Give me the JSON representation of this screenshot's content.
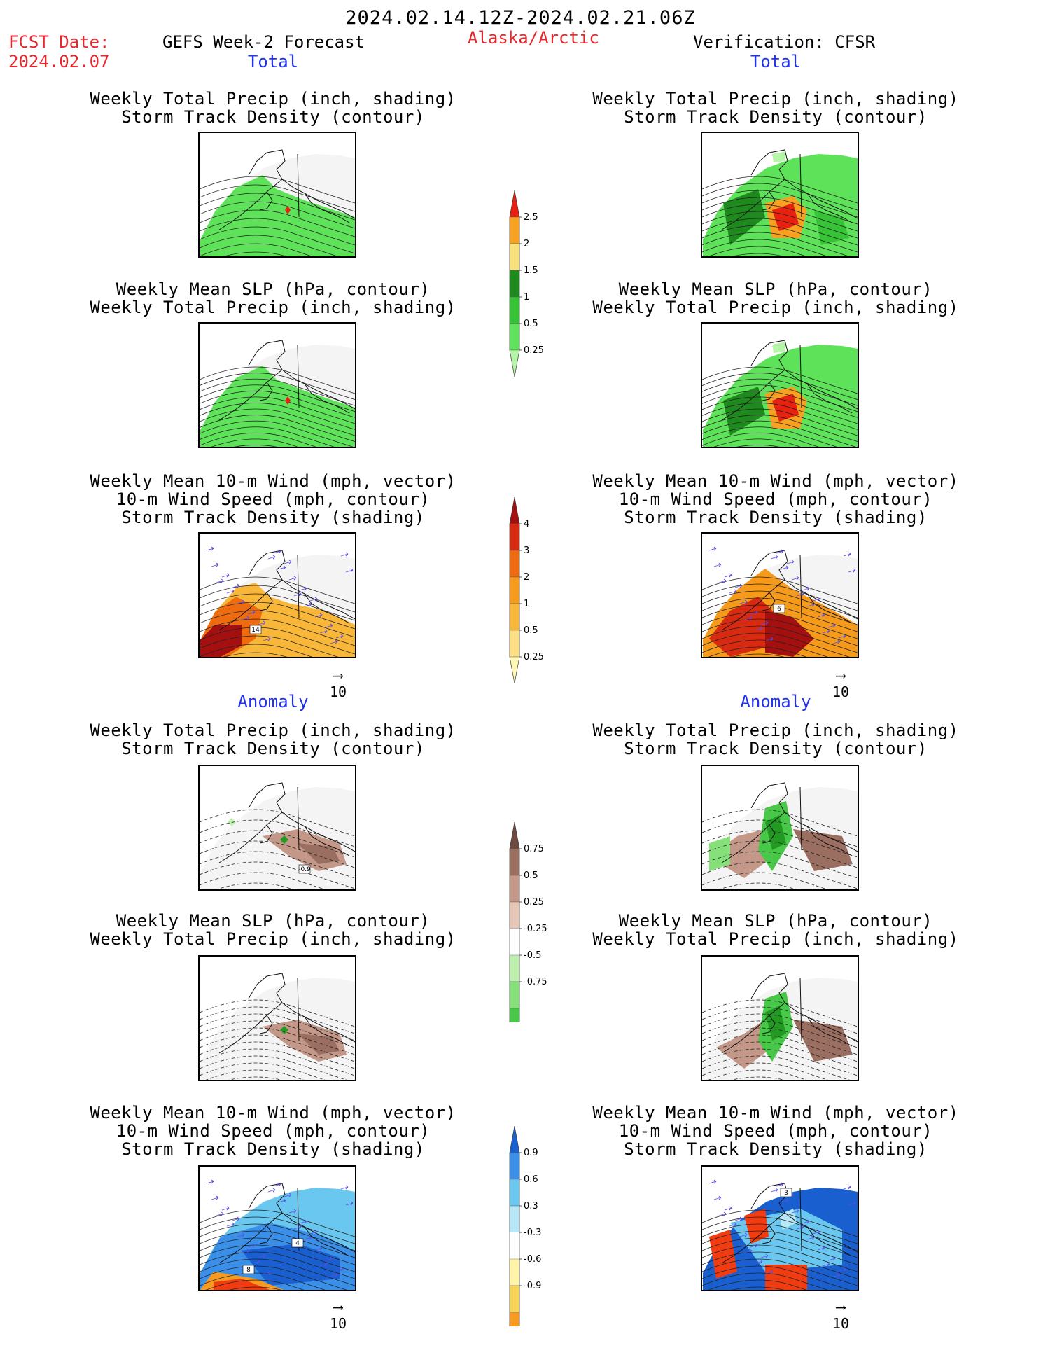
{
  "header": {
    "title": "2024.02.14.12Z-2024.02.21.06Z",
    "fcst_label": "FCST Date:",
    "fcst_date": "2024.02.07",
    "forecast_label": "GEFS Week-2 Forecast",
    "region": "Alaska/Arctic",
    "verification": "Verification: CFSR"
  },
  "sections": {
    "total_left": "Total",
    "total_right": "Total",
    "anomaly_left": "Anomaly",
    "anomaly_right": "Anomaly"
  },
  "panels": [
    {
      "id": "p1",
      "lines": [
        "Weekly Total Precip (inch, shading)",
        "Storm Track Density (contour)"
      ]
    },
    {
      "id": "p2",
      "lines": [
        "Weekly Total Precip (inch, shading)",
        "Storm Track Density (contour)"
      ]
    },
    {
      "id": "p3",
      "lines": [
        "Weekly Mean SLP (hPa, contour)",
        "Weekly Total Precip (inch, shading)"
      ]
    },
    {
      "id": "p4",
      "lines": [
        "Weekly Mean SLP (hPa, contour)",
        "Weekly Total Precip (inch, shading)"
      ]
    },
    {
      "id": "p5",
      "lines": [
        "Weekly Mean 10-m Wind (mph, vector)",
        "10-m Wind Speed (mph, contour)",
        "Storm Track Density (shading)"
      ]
    },
    {
      "id": "p6",
      "lines": [
        "Weekly Mean 10-m Wind (mph, vector)",
        "10-m Wind Speed (mph, contour)",
        "Storm Track Density (shading)"
      ]
    },
    {
      "id": "p7",
      "lines": [
        "Weekly Total Precip (inch, shading)",
        "Storm Track Density (contour)"
      ]
    },
    {
      "id": "p8",
      "lines": [
        "Weekly Total Precip (inch, shading)",
        "Storm Track Density (contour)"
      ]
    },
    {
      "id": "p9",
      "lines": [
        "Weekly Mean SLP (hPa, contour)",
        "Weekly Total Precip (inch, shading)"
      ]
    },
    {
      "id": "p10",
      "lines": [
        "Weekly Mean SLP (hPa, contour)",
        "Weekly Total Precip (inch, shading)"
      ]
    },
    {
      "id": "p11",
      "lines": [
        "Weekly Mean 10-m Wind (mph, vector)",
        "10-m Wind Speed (mph, contour)",
        "Storm Track Density (shading)"
      ]
    },
    {
      "id": "p12",
      "lines": [
        "Weekly Mean 10-m Wind (mph, vector)",
        "10-m Wind Speed (mph, contour)",
        "Storm Track Density (shading)"
      ]
    }
  ],
  "panel_labels": {
    "p5": [
      "14"
    ],
    "p6": [
      "6"
    ],
    "p7": [
      "-0.9"
    ],
    "p11": [
      "4",
      "8"
    ],
    "p12": [
      "3"
    ]
  },
  "vector_ref": "10",
  "chart_data": [
    {
      "type": "heatmap",
      "name": "precip_total",
      "levels": [
        "0.25",
        "0.5",
        "1",
        "1.5",
        "2",
        "2.5"
      ],
      "colors": [
        "#b4f5a8",
        "#5ee25a",
        "#36c436",
        "#1e8a1e",
        "#f8e27c",
        "#f8a020",
        "#e82010"
      ]
    },
    {
      "type": "heatmap",
      "name": "storm_density_total",
      "levels": [
        "0.25",
        "0.5",
        "1",
        "2",
        "3",
        "4"
      ],
      "colors": [
        "#fff8b4",
        "#fde083",
        "#f9b73a",
        "#f59a1a",
        "#ee6b10",
        "#d82a10",
        "#a41010"
      ]
    },
    {
      "type": "heatmap",
      "name": "precip_anomaly",
      "levels": [
        "0.75",
        "0.5",
        "0.25",
        "-0.25",
        "-0.5",
        "-0.75"
      ],
      "colors": [
        "#229a22",
        "#48c848",
        "#86e07a",
        "#c0f0b0",
        "#ffffff",
        "#e6c6b6",
        "#c49888",
        "#9a6e60",
        "#6e4a40"
      ]
    },
    {
      "type": "heatmap",
      "name": "storm_density_anomaly",
      "levels": [
        "0.9",
        "0.6",
        "0.3",
        "-0.3",
        "-0.6",
        "-0.9"
      ],
      "colors": [
        "#f03c10",
        "#f89a20",
        "#f8d456",
        "#fff4a8",
        "#ffffff",
        "#b8e8f8",
        "#6ac8f0",
        "#3a90e8",
        "#1a5fd0"
      ]
    }
  ]
}
